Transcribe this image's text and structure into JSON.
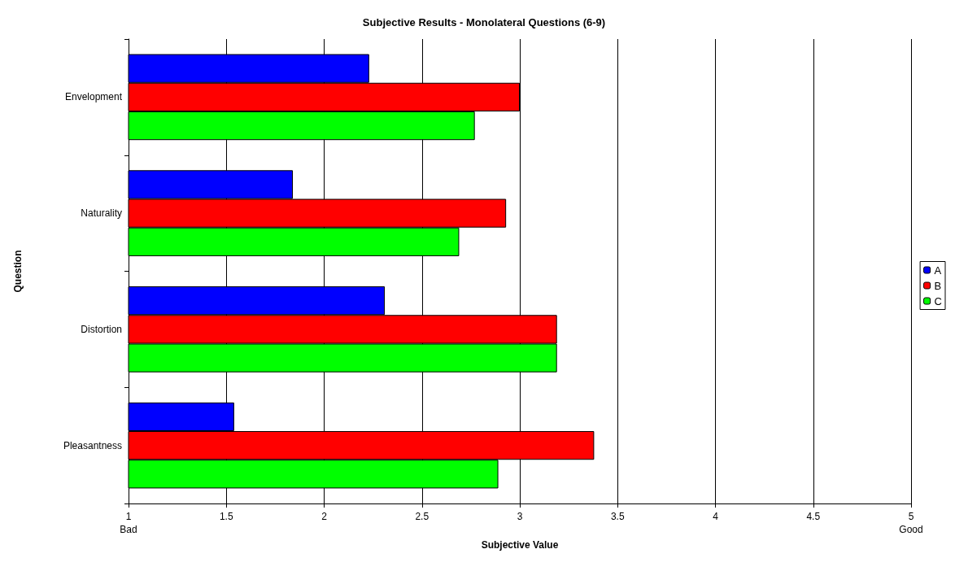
{
  "chart_data": {
    "type": "bar",
    "orientation": "horizontal",
    "title": "Subjective Results - Monolateral Questions (6-9)",
    "xlabel": "Subjective Value",
    "ylabel": "Question",
    "categories": [
      "Envelopment",
      "Naturality",
      "Distortion",
      "Pleasantness"
    ],
    "series": [
      {
        "name": "A",
        "color": "#0000ff",
        "values": [
          2.23,
          1.84,
          2.31,
          1.54
        ]
      },
      {
        "name": "B",
        "color": "#ff0000",
        "values": [
          3.0,
          2.93,
          3.19,
          3.38
        ]
      },
      {
        "name": "C",
        "color": "#00ff00",
        "values": [
          2.77,
          2.69,
          3.19,
          2.89
        ]
      }
    ],
    "xlim": [
      1,
      5
    ],
    "xticks": [
      {
        "value": 1,
        "label": "1\nBad"
      },
      1.5,
      2,
      2.5,
      3,
      3.5,
      4,
      4.5,
      {
        "value": 5,
        "label": "5\nGood"
      }
    ],
    "grid": "x",
    "legend": "right"
  }
}
